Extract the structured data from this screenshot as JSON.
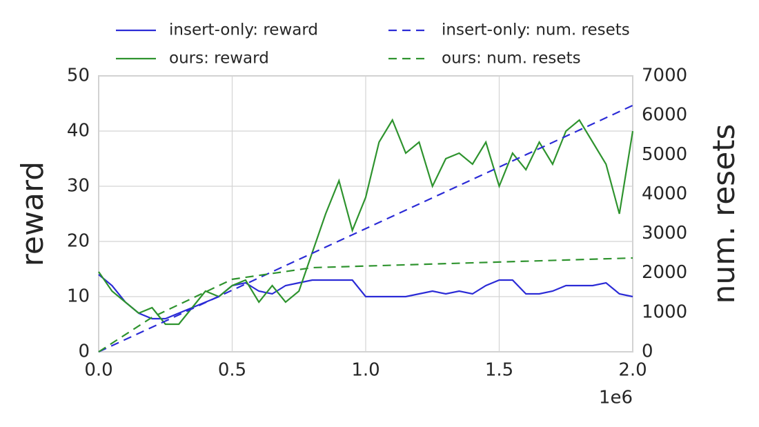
{
  "chart_data": {
    "type": "line",
    "ylabel": "reward",
    "y2label": "num. resets",
    "x_offset_label": "1e6",
    "xlim": [
      0,
      2000000
    ],
    "xticks": [
      {
        "value": 0,
        "label": "0.0"
      },
      {
        "value": 500000,
        "label": "0.5"
      },
      {
        "value": 1000000,
        "label": "1.0"
      },
      {
        "value": 1500000,
        "label": "1.5"
      },
      {
        "value": 2000000,
        "label": "2.0"
      }
    ],
    "ylim": [
      0,
      50
    ],
    "yticks": [
      0,
      10,
      20,
      30,
      40,
      50
    ],
    "y2lim": [
      0,
      7000
    ],
    "y2ticks": [
      0,
      1000,
      2000,
      3000,
      4000,
      5000,
      6000,
      7000
    ],
    "grid": true,
    "legend": "top",
    "series": [
      {
        "name": "insert-only: reward",
        "color": "#2b2bd6",
        "dash": "solid",
        "x": [
          0,
          50000,
          100000,
          150000,
          200000,
          250000,
          300000,
          350000,
          400000,
          450000,
          500000,
          550000,
          600000,
          650000,
          700000,
          750000,
          800000,
          850000,
          900000,
          950000,
          1000000,
          1050000,
          1100000,
          1150000,
          1200000,
          1250000,
          1300000,
          1350000,
          1400000,
          1450000,
          1500000,
          1550000,
          1600000,
          1650000,
          1700000,
          1750000,
          1800000,
          1850000,
          1900000,
          1950000,
          2000000
        ],
        "values": [
          14,
          12,
          9,
          7,
          6,
          6,
          7,
          8,
          9,
          10,
          12,
          12.5,
          11,
          10.5,
          12,
          12.5,
          13,
          13,
          13,
          13,
          10,
          10,
          10,
          10,
          10.5,
          11,
          10.5,
          11,
          10.5,
          12,
          13,
          13,
          10.5,
          10.5,
          11,
          12,
          12,
          12,
          12.5,
          10.5,
          10
        ]
      },
      {
        "name": "ours: reward",
        "color": "#2e932e",
        "dash": "solid",
        "x": [
          0,
          50000,
          100000,
          150000,
          200000,
          250000,
          300000,
          350000,
          400000,
          450000,
          500000,
          550000,
          600000,
          650000,
          700000,
          750000,
          800000,
          850000,
          900000,
          950000,
          1000000,
          1050000,
          1100000,
          1150000,
          1200000,
          1250000,
          1300000,
          1350000,
          1400000,
          1450000,
          1500000,
          1550000,
          1600000,
          1650000,
          1700000,
          1750000,
          1800000,
          1850000,
          1900000,
          1950000,
          2000000
        ],
        "values": [
          14.5,
          11,
          9,
          7,
          8,
          5,
          5,
          8,
          11,
          10,
          12,
          13,
          9,
          12,
          9,
          11,
          18,
          25,
          31,
          22,
          28,
          38,
          42,
          36,
          38,
          30,
          35,
          36,
          34,
          38,
          30,
          36,
          33,
          38,
          34,
          40,
          42,
          38,
          34,
          25,
          40
        ]
      },
      {
        "name": "insert-only: num. resets",
        "color": "#2b2bd6",
        "dash": "dashed",
        "axis": "y2",
        "x": [
          0,
          2000000
        ],
        "values": [
          0,
          6250
        ]
      },
      {
        "name": "ours: num. resets",
        "color": "#2e932e",
        "dash": "dashed",
        "axis": "y2",
        "x": [
          0,
          200000,
          500000,
          800000,
          2000000
        ],
        "values": [
          0,
          875,
          1840,
          2135,
          2380
        ]
      }
    ]
  }
}
